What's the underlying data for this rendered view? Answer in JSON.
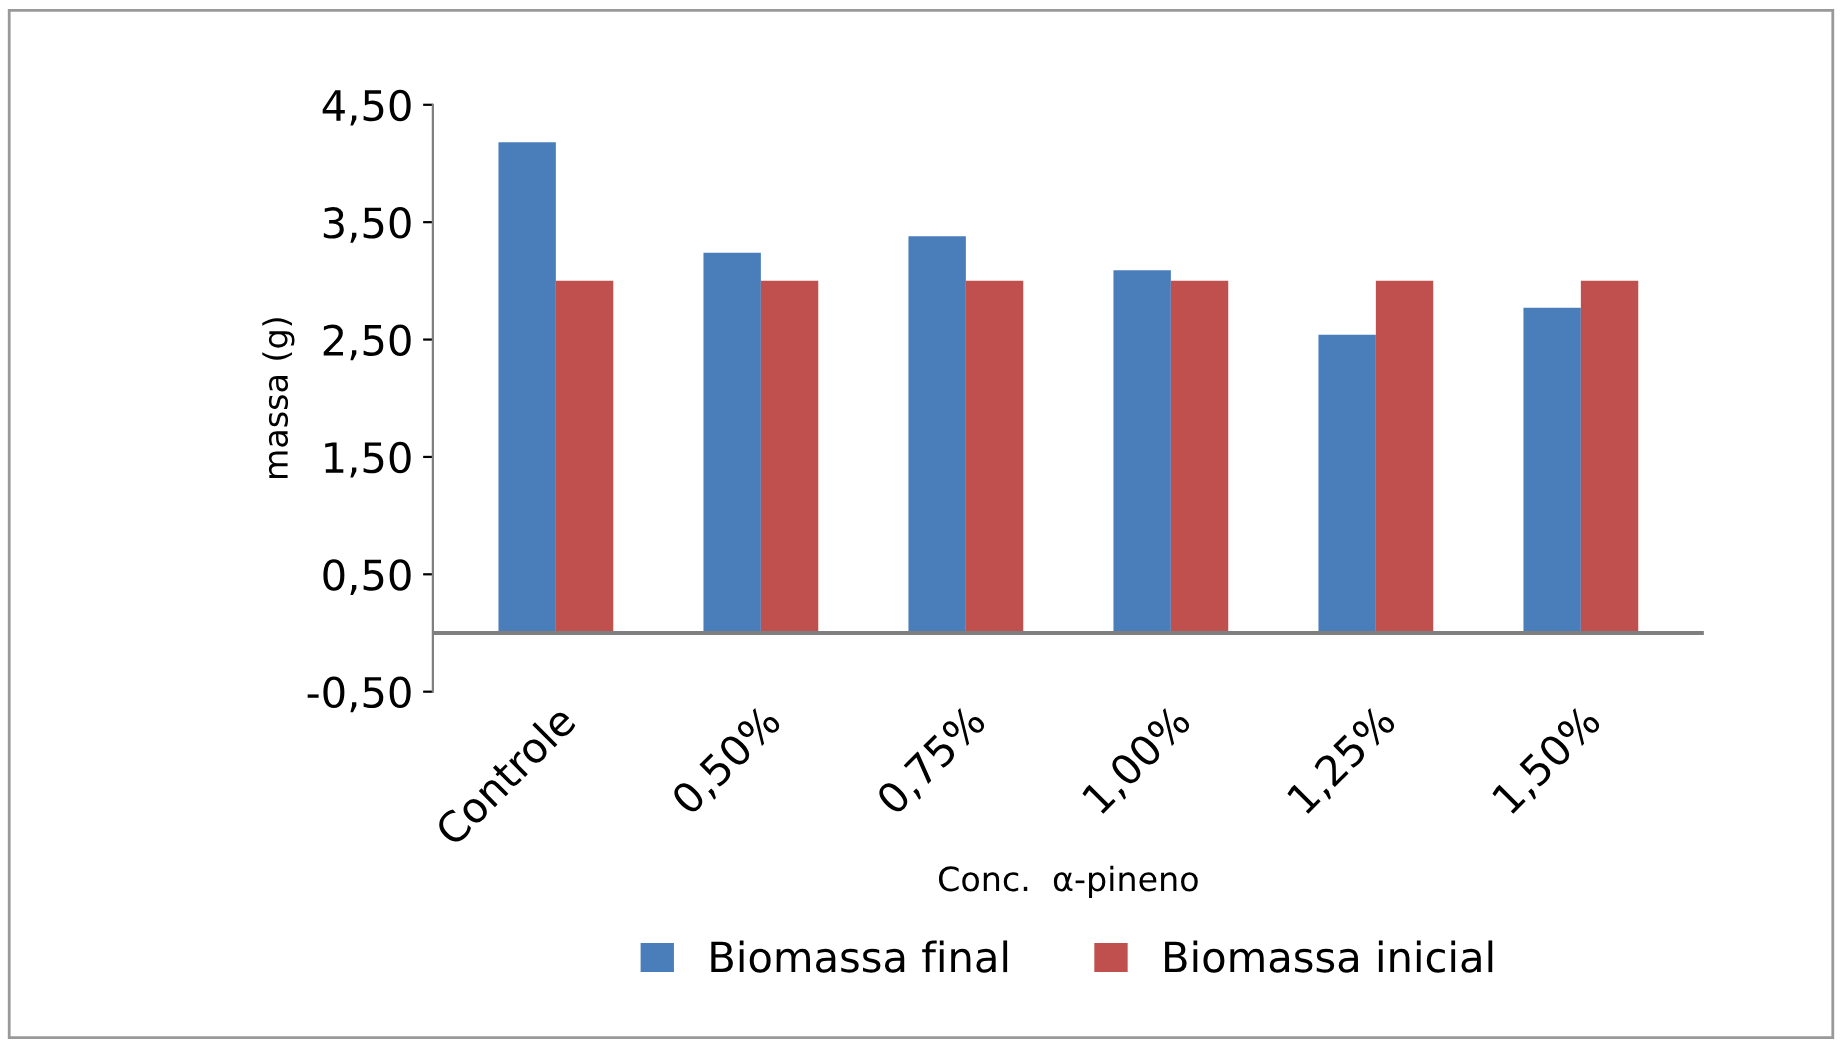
{
  "chart_data": {
    "type": "bar",
    "xlabel": "Conc.  α-pineno",
    "ylabel": "massa (g)",
    "categories": [
      "Controle",
      "0,50%",
      "0,75%",
      "1,00%",
      "1,25%",
      "1,50%"
    ],
    "series": [
      {
        "name": "Biomassa final",
        "color": "#4a7ebb",
        "values": [
          4.18,
          3.24,
          3.38,
          3.09,
          2.54,
          2.77
        ]
      },
      {
        "name": "Biomassa inicial",
        "color": "#c0504d",
        "values": [
          3.0,
          3.0,
          3.0,
          3.0,
          3.0,
          3.0
        ]
      }
    ],
    "ylim": [
      -0.5,
      4.5
    ],
    "yticks": [
      {
        "value": -0.5,
        "label": "-0,50"
      },
      {
        "value": 0.5,
        "label": "0,50"
      },
      {
        "value": 1.5,
        "label": "1,50"
      },
      {
        "value": 2.5,
        "label": "2,50"
      },
      {
        "value": 3.5,
        "label": "3,50"
      },
      {
        "value": 4.5,
        "label": "4,50"
      }
    ],
    "grid": false,
    "legend": "bottom"
  }
}
